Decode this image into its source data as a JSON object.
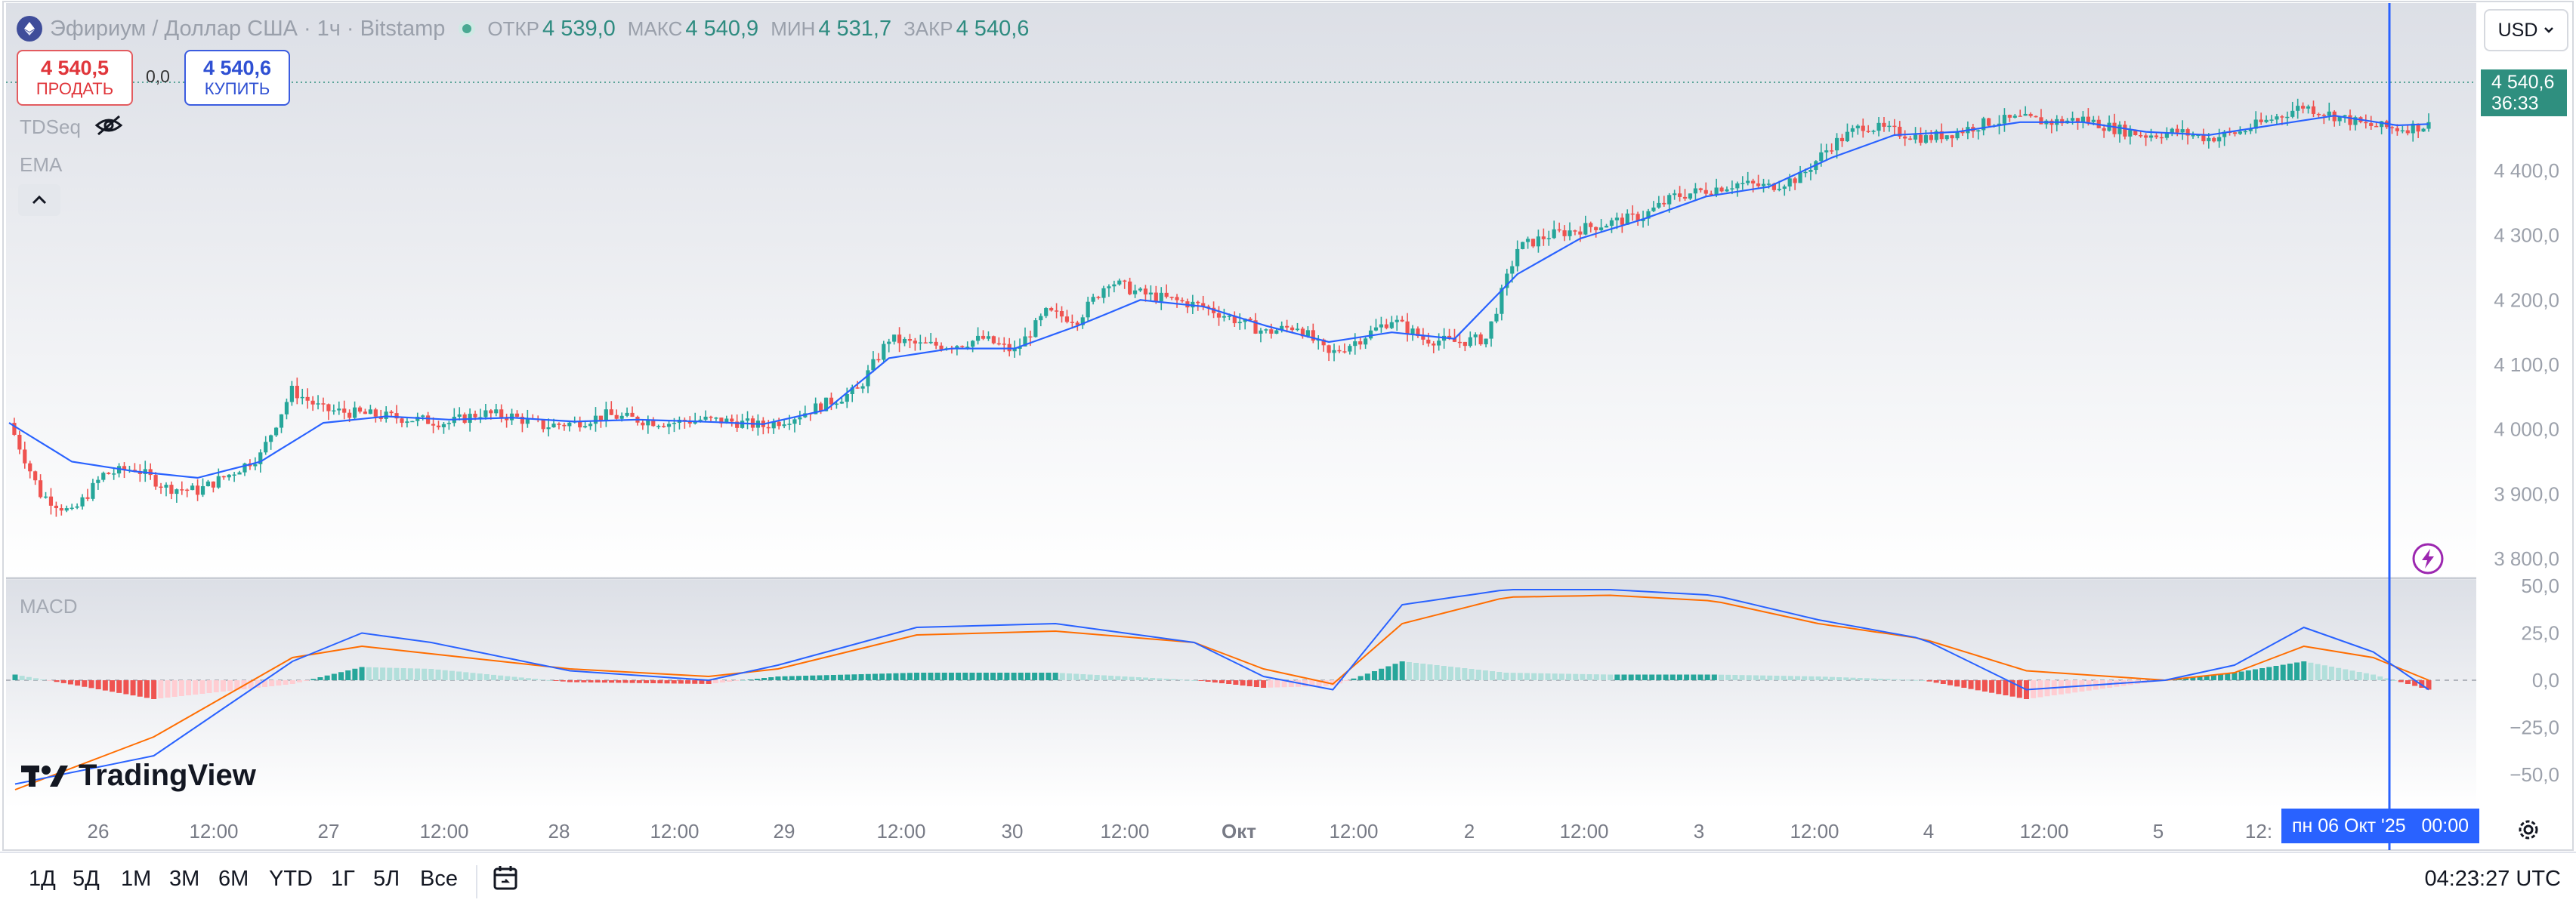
{
  "symbol": {
    "name": "Эфириум / Доллар США",
    "interval": "1ч",
    "exchange": "Bitstamp",
    "open_label": "ОТКР",
    "open": "4 539,0",
    "high_label": "МАКС",
    "high": "4 540,9",
    "low_label": "МИН",
    "low": "4 531,7",
    "close_label": "ЗАКР",
    "close": "4 540,6"
  },
  "trade": {
    "sell_price": "4 540,5",
    "sell_label": "ПРОДАТЬ",
    "spread": "0,0",
    "buy_price": "4 540,6",
    "buy_label": "КУПИТЬ"
  },
  "indicators": {
    "tdseq": "TDSeq",
    "ema": "EMA",
    "macd": "MACD"
  },
  "currency": "USD",
  "last_price": {
    "value": "4 540,6",
    "countdown": "36:33"
  },
  "price_axis": [
    "4 400,0",
    "4 300,0",
    "4 200,0",
    "4 100,0",
    "4 000,0",
    "3 900,0",
    "3 800,0"
  ],
  "macd_axis": [
    "50,0",
    "25,0",
    "0,0",
    "−25,0",
    "−50,0"
  ],
  "time_axis": [
    "26",
    "12:00",
    "27",
    "12:00",
    "28",
    "12:00",
    "29",
    "12:00",
    "30",
    "12:00",
    "Окт",
    "12:00",
    "2",
    "12:00",
    "3",
    "12:00",
    "4",
    "12:00",
    "5",
    "12:"
  ],
  "crosshair_date": "пн 06 Окт '25   00:00",
  "logo_text": "TradingView",
  "ranges": [
    "1Д",
    "5Д",
    "1М",
    "3М",
    "6М",
    "YTD",
    "1Г",
    "5Л",
    "Все"
  ],
  "clock": "04:23:27 UTC",
  "colors": {
    "up": "#26a69a",
    "down": "#ef5350",
    "ema": "#2962ff",
    "signal": "#ff6d00",
    "crosshair": "#2962ff"
  },
  "chart_data": {
    "type": "candlestick",
    "ylim": [
      3800,
      4500
    ],
    "macd_ylim": [
      -60,
      50
    ],
    "close_path": [
      [
        0,
        4010
      ],
      [
        6,
        3900
      ],
      [
        12,
        3870
      ],
      [
        18,
        3930
      ],
      [
        24,
        3940
      ],
      [
        30,
        3910
      ],
      [
        36,
        3905
      ],
      [
        42,
        3930
      ],
      [
        48,
        3960
      ],
      [
        54,
        4060
      ],
      [
        60,
        4030
      ],
      [
        66,
        4025
      ],
      [
        72,
        4020
      ],
      [
        78,
        4015
      ],
      [
        84,
        4010
      ],
      [
        90,
        4025
      ],
      [
        96,
        4020
      ],
      [
        102,
        4005
      ],
      [
        108,
        4010
      ],
      [
        114,
        4022
      ],
      [
        120,
        4015
      ],
      [
        126,
        4010
      ],
      [
        132,
        4015
      ],
      [
        138,
        4012
      ],
      [
        144,
        4005
      ],
      [
        150,
        4020
      ],
      [
        156,
        4040
      ],
      [
        162,
        4060
      ],
      [
        168,
        4140
      ],
      [
        174,
        4130
      ],
      [
        180,
        4130
      ],
      [
        186,
        4140
      ],
      [
        192,
        4120
      ],
      [
        198,
        4180
      ],
      [
        204,
        4170
      ],
      [
        210,
        4230
      ],
      [
        216,
        4210
      ],
      [
        222,
        4200
      ],
      [
        228,
        4190
      ],
      [
        234,
        4170
      ],
      [
        240,
        4150
      ],
      [
        246,
        4160
      ],
      [
        252,
        4115
      ],
      [
        258,
        4140
      ],
      [
        264,
        4170
      ],
      [
        270,
        4140
      ],
      [
        276,
        4135
      ],
      [
        282,
        4140
      ],
      [
        288,
        4280
      ],
      [
        294,
        4300
      ],
      [
        300,
        4310
      ],
      [
        306,
        4320
      ],
      [
        312,
        4330
      ],
      [
        318,
        4360
      ],
      [
        324,
        4370
      ],
      [
        330,
        4380
      ],
      [
        336,
        4375
      ],
      [
        342,
        4390
      ],
      [
        348,
        4440
      ],
      [
        354,
        4470
      ],
      [
        360,
        4460
      ],
      [
        366,
        4450
      ],
      [
        372,
        4460
      ],
      [
        378,
        4475
      ],
      [
        384,
        4480
      ],
      [
        390,
        4475
      ],
      [
        396,
        4480
      ],
      [
        402,
        4465
      ],
      [
        408,
        4455
      ],
      [
        414,
        4460
      ],
      [
        420,
        4450
      ],
      [
        426,
        4460
      ],
      [
        432,
        4480
      ],
      [
        438,
        4500
      ],
      [
        444,
        4485
      ],
      [
        450,
        4470
      ],
      [
        456,
        4465
      ],
      [
        462,
        4470
      ]
    ],
    "ema_path": [
      [
        0,
        4010
      ],
      [
        12,
        3950
      ],
      [
        24,
        3935
      ],
      [
        36,
        3925
      ],
      [
        48,
        3950
      ],
      [
        60,
        4010
      ],
      [
        72,
        4020
      ],
      [
        84,
        4015
      ],
      [
        96,
        4018
      ],
      [
        108,
        4012
      ],
      [
        120,
        4015
      ],
      [
        132,
        4012
      ],
      [
        144,
        4008
      ],
      [
        156,
        4030
      ],
      [
        168,
        4110
      ],
      [
        180,
        4125
      ],
      [
        192,
        4125
      ],
      [
        204,
        4160
      ],
      [
        216,
        4200
      ],
      [
        228,
        4190
      ],
      [
        240,
        4160
      ],
      [
        252,
        4135
      ],
      [
        264,
        4150
      ],
      [
        276,
        4140
      ],
      [
        288,
        4240
      ],
      [
        300,
        4295
      ],
      [
        312,
        4325
      ],
      [
        324,
        4360
      ],
      [
        336,
        4375
      ],
      [
        348,
        4420
      ],
      [
        360,
        4455
      ],
      [
        372,
        4460
      ],
      [
        384,
        4475
      ],
      [
        396,
        4475
      ],
      [
        408,
        4460
      ],
      [
        420,
        4455
      ],
      [
        432,
        4470
      ],
      [
        444,
        4485
      ],
      [
        456,
        4470
      ],
      [
        462,
        4472
      ]
    ],
    "macd_path": [
      [
        0,
        -55
      ],
      [
        20,
        -40
      ],
      [
        40,
        10
      ],
      [
        50,
        25
      ],
      [
        60,
        20
      ],
      [
        80,
        5
      ],
      [
        100,
        0
      ],
      [
        110,
        8
      ],
      [
        130,
        28
      ],
      [
        150,
        30
      ],
      [
        170,
        20
      ],
      [
        180,
        2
      ],
      [
        190,
        -5
      ],
      [
        200,
        40
      ],
      [
        215,
        48
      ],
      [
        230,
        48
      ],
      [
        245,
        45
      ],
      [
        260,
        32
      ],
      [
        275,
        22
      ],
      [
        290,
        -5
      ],
      [
        310,
        0
      ],
      [
        320,
        8
      ],
      [
        330,
        28
      ],
      [
        340,
        15
      ],
      [
        348,
        -5
      ]
    ],
    "signal_path": [
      [
        0,
        -58
      ],
      [
        20,
        -30
      ],
      [
        40,
        12
      ],
      [
        50,
        18
      ],
      [
        60,
        14
      ],
      [
        80,
        6
      ],
      [
        100,
        2
      ],
      [
        110,
        6
      ],
      [
        130,
        24
      ],
      [
        150,
        26
      ],
      [
        170,
        20
      ],
      [
        180,
        6
      ],
      [
        190,
        -2
      ],
      [
        200,
        30
      ],
      [
        215,
        44
      ],
      [
        230,
        45
      ],
      [
        245,
        42
      ],
      [
        260,
        30
      ],
      [
        275,
        22
      ],
      [
        290,
        5
      ],
      [
        310,
        0
      ],
      [
        320,
        4
      ],
      [
        330,
        18
      ],
      [
        340,
        12
      ],
      [
        348,
        0
      ]
    ]
  }
}
